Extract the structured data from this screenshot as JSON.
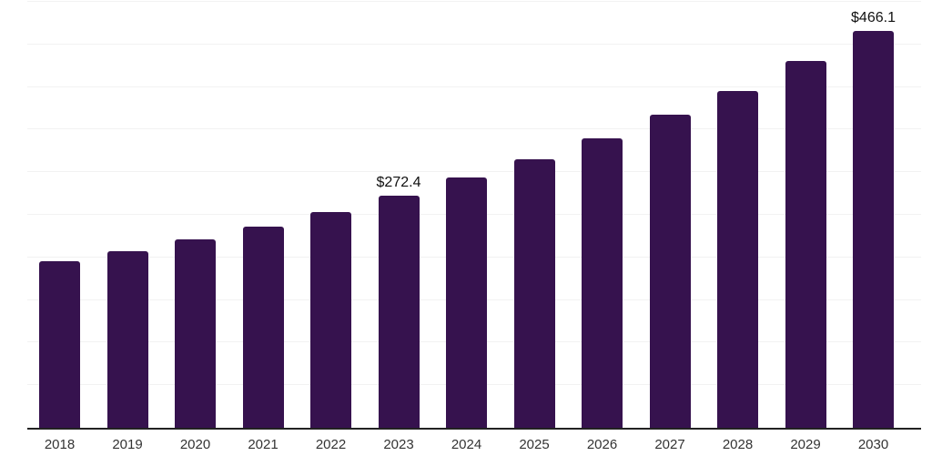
{
  "chart_data": {
    "type": "bar",
    "title": "",
    "xlabel": "",
    "ylabel": "",
    "categories": [
      "2018",
      "2019",
      "2020",
      "2021",
      "2022",
      "2023",
      "2024",
      "2025",
      "2026",
      "2027",
      "2028",
      "2029",
      "2030"
    ],
    "values": [
      195.2,
      207.7,
      220.8,
      236.5,
      253.1,
      272.4,
      293.6,
      315.0,
      339.7,
      367.4,
      395.8,
      430.5,
      466.1
    ],
    "annotations": [
      {
        "category": "2023",
        "index": 5,
        "text": "$272.4"
      },
      {
        "category": "2030",
        "index": 12,
        "text": "$466.1"
      }
    ],
    "ylim": [
      0,
      500
    ],
    "grid_step": 50,
    "grid": true,
    "legend": "none",
    "colors": {
      "bar": "#36124e",
      "axis": "#222222",
      "gridline": "#f2f2f2",
      "tick_label": "#333333",
      "value_label": "#111111",
      "background": "#ffffff"
    }
  }
}
